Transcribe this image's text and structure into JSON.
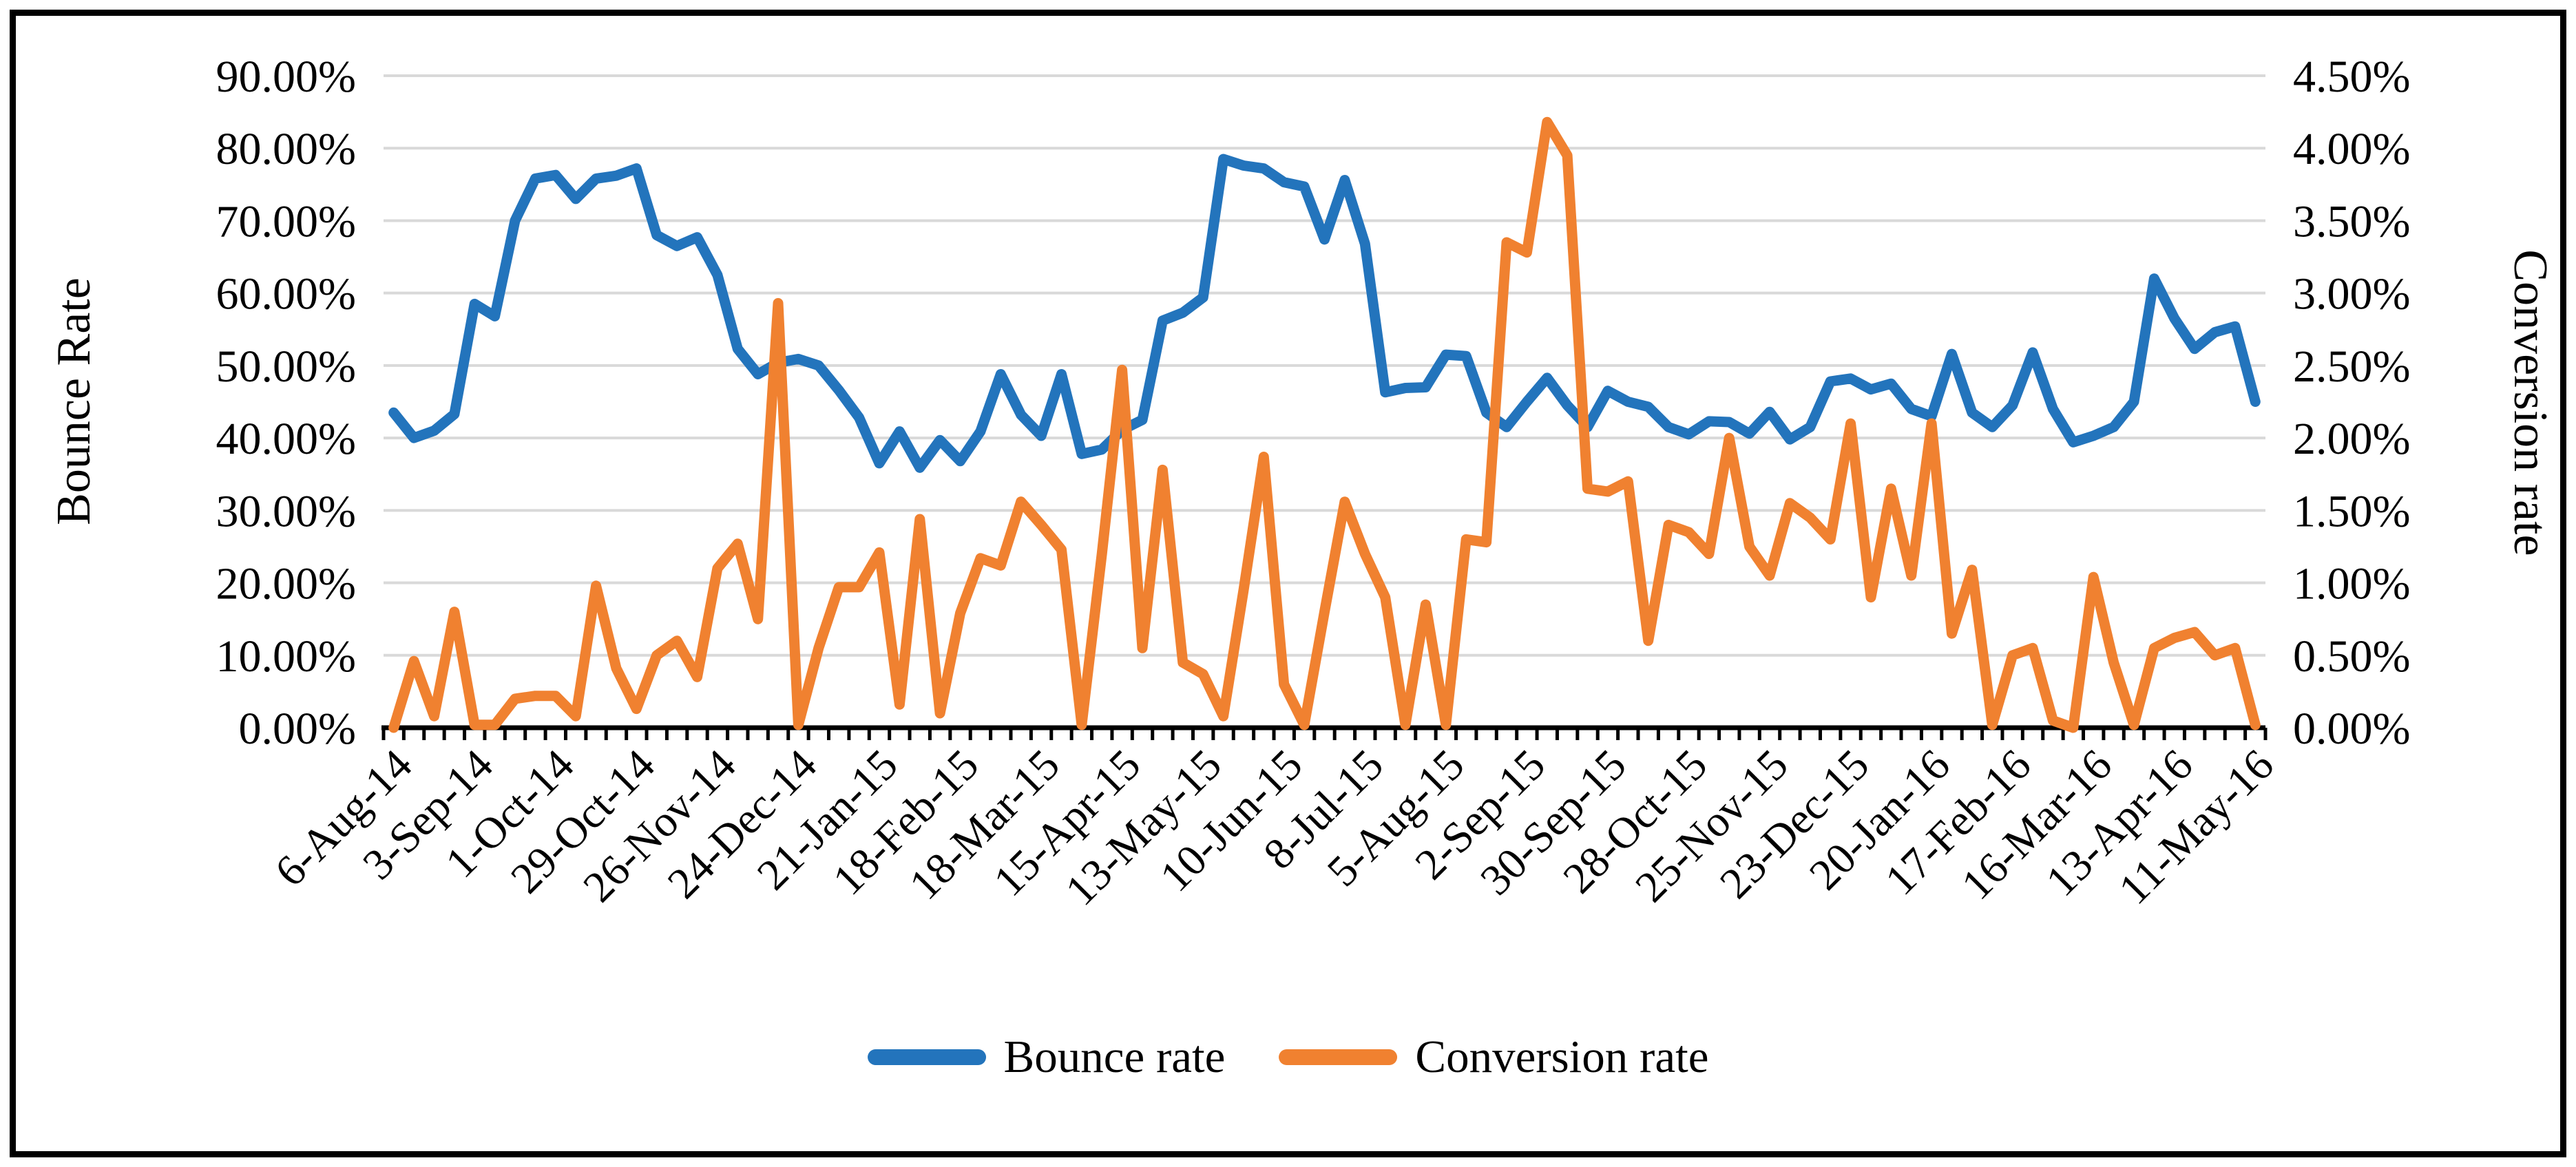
{
  "chart_data": {
    "type": "line",
    "title": "",
    "grid": true,
    "legend_position": "bottom-center",
    "n_points": 93,
    "x_label_every": 4,
    "x_tick_labels": [
      "6-Aug-14",
      "3-Sep-14",
      "1-Oct-14",
      "29-Oct-14",
      "26-Nov-14",
      "24-Dec-14",
      "21-Jan-15",
      "18-Feb-15",
      "18-Mar-15",
      "15-Apr-15",
      "13-May-15",
      "10-Jun-15",
      "8-Jul-15",
      "5-Aug-15",
      "2-Sep-15",
      "30-Sep-15",
      "28-Oct-15",
      "25-Nov-15",
      "23-Dec-15",
      "20-Jan-16",
      "17-Feb-16",
      "16-Mar-16",
      "13-Apr-16",
      "11-May-16"
    ],
    "left_axis": {
      "title": "Bounce Rate",
      "min": 0,
      "max": 90,
      "tick_labels": [
        "0.00%",
        "10.00%",
        "20.00%",
        "30.00%",
        "40.00%",
        "50.00%",
        "60.00%",
        "70.00%",
        "80.00%",
        "90.00%"
      ]
    },
    "right_axis": {
      "title": "Conversion rate",
      "min": 0,
      "max": 4.5,
      "tick_labels": [
        "0.00%",
        "0.50%",
        "1.00%",
        "1.50%",
        "2.00%",
        "2.50%",
        "3.00%",
        "3.50%",
        "4.00%",
        "4.50%"
      ]
    },
    "series": [
      {
        "name": "Bounce rate",
        "axis": "left",
        "color": "#2374BC",
        "values": [
          43.5,
          40.0,
          41.0,
          43.3,
          58.5,
          56.8,
          70.0,
          75.8,
          76.3,
          73.0,
          75.8,
          76.2,
          77.2,
          68.0,
          66.5,
          67.7,
          62.5,
          52.3,
          48.8,
          50.4,
          50.9,
          50.0,
          46.6,
          42.8,
          36.5,
          40.9,
          35.9,
          39.7,
          36.8,
          40.9,
          48.8,
          43.2,
          40.3,
          48.8,
          37.8,
          38.4,
          41.1,
          42.5,
          56.2,
          57.3,
          59.4,
          78.5,
          77.6,
          77.2,
          75.3,
          74.7,
          67.4,
          75.6,
          66.8,
          46.3,
          46.9,
          47.0,
          51.5,
          51.3,
          43.5,
          41.5,
          45.0,
          48.3,
          44.5,
          41.5,
          46.5,
          45.0,
          44.3,
          41.5,
          40.5,
          42.3,
          42.2,
          40.6,
          43.6,
          39.8,
          41.5,
          47.8,
          48.2,
          46.7,
          47.5,
          44.0,
          43.0,
          51.6,
          43.5,
          41.5,
          44.5,
          51.8,
          44.0,
          39.4,
          40.3,
          41.5,
          45.0,
          62.0,
          56.5,
          52.3,
          54.6,
          55.4,
          45.0
        ]
      },
      {
        "name": "Conversion rate",
        "axis": "right",
        "color": "#F08130",
        "values": [
          0.0,
          0.46,
          0.08,
          0.8,
          0.02,
          0.02,
          0.2,
          0.22,
          0.22,
          0.08,
          0.98,
          0.41,
          0.13,
          0.5,
          0.6,
          0.35,
          1.1,
          1.27,
          0.75,
          2.93,
          0.02,
          0.55,
          0.97,
          0.97,
          1.21,
          0.16,
          1.44,
          0.1,
          0.79,
          1.17,
          1.12,
          1.56,
          1.4,
          1.23,
          0.02,
          1.2,
          2.47,
          0.55,
          1.78,
          0.45,
          0.37,
          0.08,
          0.95,
          1.87,
          0.3,
          0.02,
          0.8,
          1.56,
          1.2,
          0.9,
          0.02,
          0.85,
          0.02,
          1.3,
          1.28,
          3.35,
          3.28,
          4.18,
          3.95,
          1.65,
          1.63,
          1.7,
          0.6,
          1.4,
          1.35,
          1.2,
          2.0,
          1.25,
          1.05,
          1.55,
          1.45,
          1.3,
          2.1,
          0.9,
          1.65,
          1.05,
          2.1,
          0.65,
          1.09,
          0.02,
          0.5,
          0.55,
          0.05,
          0.0,
          1.04,
          0.45,
          0.02,
          0.55,
          0.62,
          0.66,
          0.5,
          0.55,
          0.02
        ]
      }
    ]
  },
  "style": {
    "gridline_color": "#D9D9D9",
    "axis_color": "#000000",
    "background": "#FFFFFF",
    "border_color": "#000000"
  },
  "legend": {
    "bounce_label": "Bounce rate",
    "conversion_label": "Conversion rate"
  }
}
